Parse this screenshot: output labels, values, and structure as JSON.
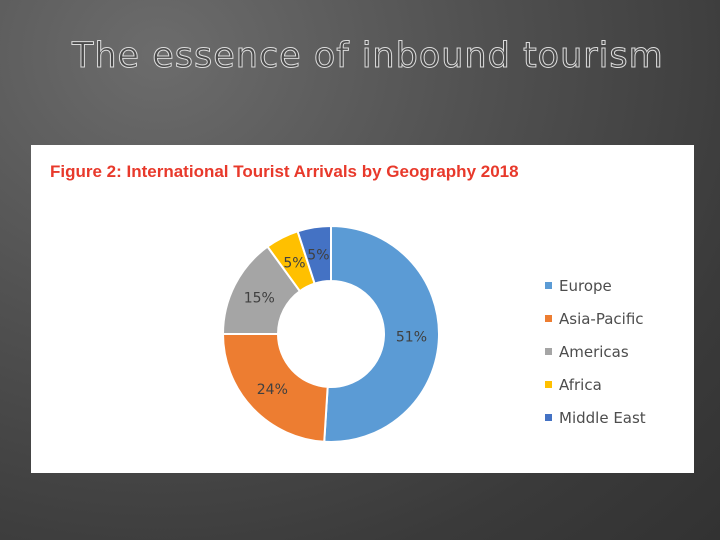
{
  "slide": {
    "title": "The essence of inbound tourism"
  },
  "colors": {
    "Europe": "#5b9bd5",
    "Asia-Pacific": "#ed7d31",
    "Americas": "#a5a5a5",
    "Africa": "#ffc000",
    "Middle East": "#4472c4"
  },
  "chart_data": {
    "type": "pie",
    "variant": "donut",
    "title": "Figure 2: International Tourist Arrivals by Geography 2018",
    "categories": [
      "Europe",
      "Asia-Pacific",
      "Americas",
      "Africa",
      "Middle East"
    ],
    "values": [
      51,
      24,
      15,
      5,
      5
    ],
    "data_labels": [
      "51%",
      "24%",
      "15%",
      "5%",
      "5%"
    ],
    "unit": "%",
    "legend_position": "right"
  }
}
